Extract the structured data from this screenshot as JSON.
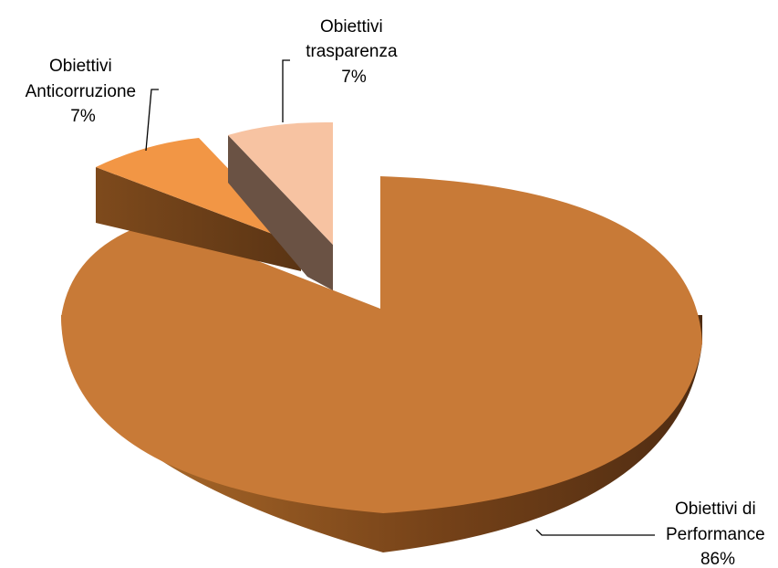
{
  "chart_data": {
    "type": "pie",
    "variant": "3d-exploded",
    "slices": [
      {
        "label_lines": [
          "Obiettivi di",
          "Performance"
        ],
        "percent_label": "86%",
        "value": 86,
        "color": "#c87a37"
      },
      {
        "label_lines": [
          "Obiettivi",
          "Anticorruzione"
        ],
        "percent_label": "7%",
        "value": 7,
        "color": "#f29645"
      },
      {
        "label_lines": [
          "Obiettivi",
          "trasparenza"
        ],
        "percent_label": "7%",
        "value": 7,
        "color": "#f7c3a2"
      }
    ]
  }
}
